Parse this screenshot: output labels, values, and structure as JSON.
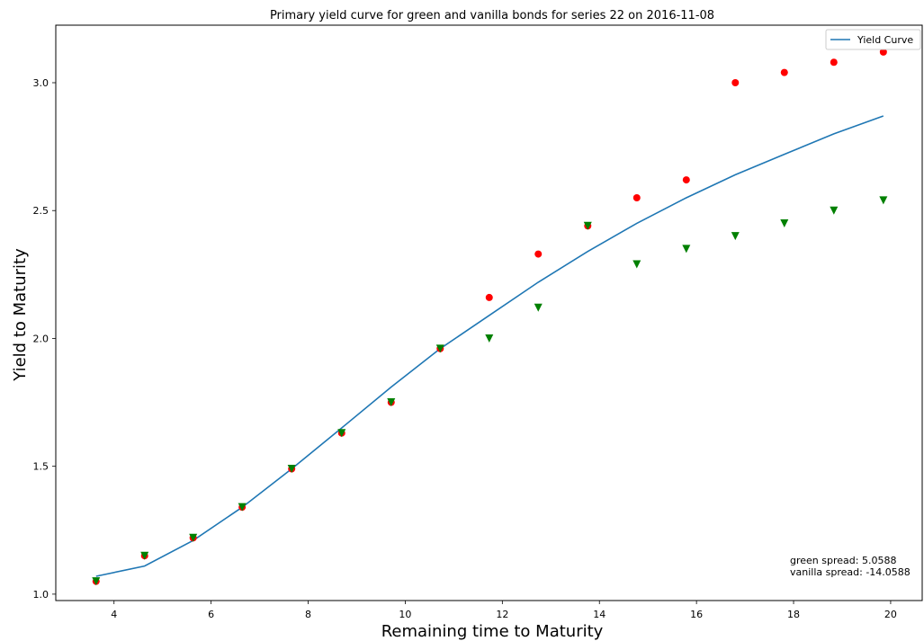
{
  "chart_data": {
    "type": "line",
    "title": "Primary yield curve for green and vanilla bonds for series 22 on 2016-11-08",
    "xlabel": "Remaining time to Maturity",
    "ylabel": "Yield to Maturity",
    "xlim": [
      2.8,
      20.65
    ],
    "ylim": [
      0.975,
      3.225
    ],
    "xticks": [
      4,
      6,
      8,
      10,
      12,
      14,
      16,
      18,
      20
    ],
    "yticks": [
      1.0,
      1.5,
      2.0,
      2.5,
      3.0
    ],
    "xtick_labels": [
      "4",
      "6",
      "8",
      "10",
      "12",
      "14",
      "16",
      "18",
      "20"
    ],
    "ytick_labels": [
      "1.0",
      "1.5",
      "2.0",
      "2.5",
      "3.0"
    ],
    "grid": false,
    "legend_position": "top-right",
    "legend": [
      {
        "label": "Yield Curve",
        "color": "#1f77b4"
      }
    ],
    "series": [
      {
        "name": "Yield Curve",
        "kind": "line",
        "color": "#1f77b4",
        "x": [
          3.63,
          4.63,
          5.63,
          6.64,
          7.66,
          8.69,
          9.71,
          10.72,
          11.73,
          12.74,
          13.76,
          14.77,
          15.79,
          16.8,
          17.81,
          18.83,
          19.85
        ],
        "y": [
          1.07,
          1.11,
          1.21,
          1.34,
          1.49,
          1.65,
          1.81,
          1.96,
          2.09,
          2.22,
          2.34,
          2.45,
          2.55,
          2.64,
          2.72,
          2.8,
          2.87
        ]
      },
      {
        "kind": "scatter",
        "marker": "circle",
        "color": "#ff0000",
        "x": [
          3.63,
          4.63,
          5.63,
          6.64,
          7.66,
          8.69,
          9.71,
          10.72,
          11.73,
          12.74,
          13.76,
          14.77,
          15.79,
          16.8,
          17.81,
          18.83,
          19.85
        ],
        "y": [
          1.05,
          1.15,
          1.22,
          1.34,
          1.49,
          1.63,
          1.75,
          1.96,
          2.16,
          2.33,
          2.44,
          2.55,
          2.62,
          3.0,
          3.04,
          3.08,
          3.12
        ]
      },
      {
        "kind": "scatter",
        "marker": "triangle-down",
        "color": "#008000",
        "x": [
          3.63,
          4.63,
          5.63,
          6.64,
          7.66,
          8.69,
          9.71,
          10.72,
          11.73,
          12.74,
          13.76,
          14.77,
          15.79,
          16.8,
          17.81,
          18.83,
          19.85
        ],
        "y": [
          1.05,
          1.15,
          1.22,
          1.34,
          1.49,
          1.63,
          1.75,
          1.96,
          2.0,
          2.12,
          2.44,
          2.29,
          2.35,
          2.4,
          2.45,
          2.5,
          2.54
        ]
      }
    ],
    "annotations": [
      "green spread: 5.0588",
      "vanilla spread: -14.0588"
    ]
  }
}
